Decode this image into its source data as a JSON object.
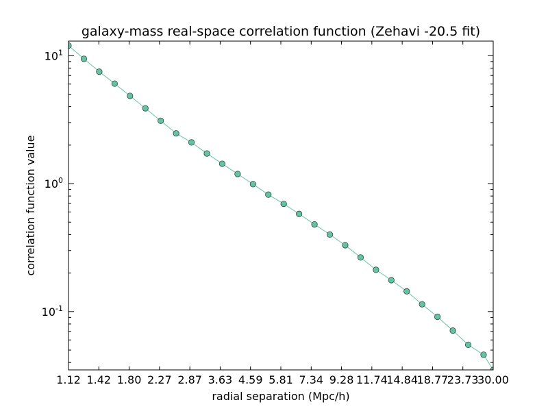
{
  "chart_data": {
    "type": "line",
    "title": "galaxy-mass real-space correlation function (Zehavi -20.5 fit)",
    "xlabel": "radial separation (Mpc/h)",
    "ylabel": "correlation function value",
    "yscale": "log",
    "xlim": [
      1.12,
      30.0
    ],
    "ylim": [
      0.035,
      13.0
    ],
    "x_tick_labels": [
      "1.12",
      "1.42",
      "1.80",
      "2.27",
      "2.87",
      "3.63",
      "4.59",
      "5.81",
      "7.34",
      "9.28",
      "11.74",
      "14.84",
      "18.77",
      "23.73",
      "30.00"
    ],
    "y_major_ticks": [
      {
        "value": 0.1,
        "base": "10",
        "exp": "-1"
      },
      {
        "value": 1,
        "base": "10",
        "exp": "0"
      },
      {
        "value": 10,
        "base": "10",
        "exp": "1"
      }
    ],
    "grid": false,
    "series": [
      {
        "line_color": "#66c2a5",
        "marker_color": "#66c2a5",
        "marker_edge_color": "#2b4a3c",
        "x": [
          1.12,
          1.262,
          1.421,
          1.601,
          1.803,
          2.031,
          2.287,
          2.577,
          2.902,
          3.269,
          3.682,
          4.148,
          4.672,
          5.262,
          5.927,
          6.676,
          7.52,
          8.471,
          9.541,
          10.747,
          12.105,
          13.635,
          15.359,
          17.3,
          19.486,
          21.949,
          24.723,
          27.848,
          30.0
        ],
        "y": [
          12.0,
          9.45,
          7.5,
          6.05,
          4.85,
          3.88,
          3.1,
          2.47,
          2.1,
          1.72,
          1.43,
          1.19,
          0.99,
          0.82,
          0.695,
          0.58,
          0.48,
          0.4,
          0.33,
          0.265,
          0.212,
          0.176,
          0.144,
          0.114,
          0.091,
          0.071,
          0.055,
          0.046,
          0.035
        ]
      }
    ]
  }
}
